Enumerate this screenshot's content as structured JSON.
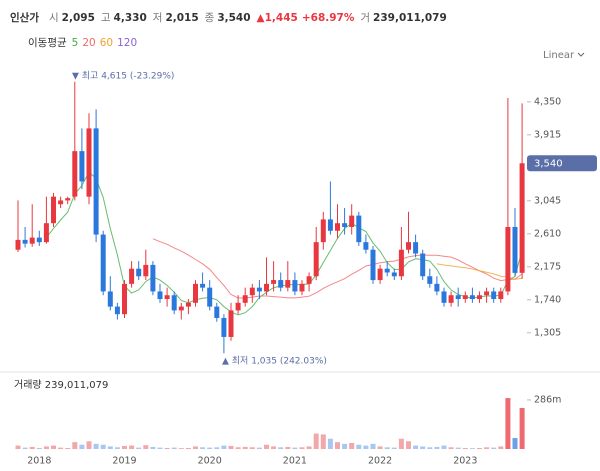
{
  "header": {
    "name": "인산가",
    "fields": [
      {
        "label": "시",
        "value": "2,095"
      },
      {
        "label": "고",
        "value": "4,330"
      },
      {
        "label": "저",
        "value": "2,015"
      },
      {
        "label": "종",
        "value": "3,540"
      }
    ],
    "change": "▲1,445",
    "change_pct": "+68.97%",
    "volume_label": "거",
    "volume": "239,011,079"
  },
  "ma_legend": {
    "label": "이동평균",
    "periods": [
      {
        "value": 5,
        "color": "#3fae49"
      },
      {
        "value": 20,
        "color": "#f06a6a"
      },
      {
        "value": 60,
        "color": "#f0a030"
      },
      {
        "value": 120,
        "color": "#8a63d2"
      }
    ]
  },
  "scale_menu": "Linear",
  "chart_data": {
    "type": "candlestick",
    "categories": [
      null,
      null,
      null,
      "2018",
      null,
      null,
      null,
      null,
      null,
      null,
      null,
      null,
      null,
      null,
      null,
      "2019",
      null,
      null,
      null,
      null,
      null,
      null,
      null,
      null,
      null,
      null,
      null,
      "2020",
      null,
      null,
      null,
      null,
      null,
      null,
      null,
      null,
      null,
      null,
      null,
      "2021",
      null,
      null,
      null,
      null,
      null,
      null,
      null,
      null,
      null,
      null,
      null,
      "2022",
      null,
      null,
      null,
      null,
      null,
      null,
      null,
      null,
      null,
      null,
      null,
      "2023",
      null,
      null,
      null,
      null,
      null,
      null,
      null,
      null
    ],
    "open": [
      2400,
      2530,
      2480,
      2560,
      2500,
      2750,
      3000,
      3050,
      3100,
      3700,
      3100,
      4000,
      2600,
      1850,
      1650,
      1550,
      1950,
      2150,
      2050,
      2200,
      1850,
      1750,
      1800,
      1600,
      1650,
      1700,
      1950,
      1900,
      1650,
      1500,
      1250,
      1600,
      1700,
      1800,
      1900,
      1850,
      1950,
      2000,
      1900,
      2000,
      1850,
      1950,
      2050,
      2500,
      2800,
      2650,
      2750,
      2700,
      2850,
      2500,
      2400,
      2000,
      2150,
      2100,
      2050,
      2400,
      2500,
      2350,
      2050,
      1950,
      1850,
      1700,
      1800,
      1750,
      1800,
      1750,
      1800,
      1850,
      1750,
      1850,
      2700,
      2095
    ],
    "high": [
      3050,
      2700,
      3000,
      2650,
      3100,
      3150,
      3100,
      3100,
      4615,
      4000,
      4200,
      4250,
      2650,
      2050,
      1700,
      2000,
      2250,
      2250,
      2400,
      2250,
      1950,
      1900,
      1850,
      1700,
      1750,
      2000,
      2100,
      2000,
      1700,
      1550,
      1700,
      1800,
      1900,
      1950,
      2000,
      2300,
      2250,
      2100,
      2250,
      2100,
      2000,
      2100,
      2700,
      2900,
      3300,
      3000,
      2950,
      3000,
      2900,
      2600,
      2450,
      2200,
      2250,
      2150,
      2700,
      2900,
      2600,
      2400,
      2150,
      2050,
      1900,
      1850,
      1900,
      1850,
      1900,
      1850,
      1900,
      1900,
      1900,
      4400,
      2950,
      4330
    ],
    "low": [
      2370,
      2430,
      2440,
      2450,
      2480,
      2700,
      2950,
      3000,
      3050,
      3200,
      3000,
      2500,
      1800,
      1600,
      1480,
      1500,
      1900,
      2000,
      2000,
      1800,
      1700,
      1650,
      1550,
      1480,
      1550,
      1650,
      1850,
      1600,
      1450,
      1035,
      1200,
      1550,
      1650,
      1700,
      1750,
      1800,
      1850,
      1850,
      1850,
      1800,
      1800,
      1850,
      2000,
      2400,
      2600,
      2550,
      2600,
      2600,
      2450,
      2350,
      1950,
      1950,
      2050,
      2000,
      2000,
      2350,
      2300,
      2000,
      1900,
      1800,
      1650,
      1650,
      1650,
      1700,
      1700,
      1700,
      1700,
      1700,
      1700,
      1800,
      2050,
      2015
    ],
    "close": [
      2530,
      2480,
      2560,
      2500,
      2750,
      3100,
      3050,
      3080,
      3700,
      3300,
      4000,
      2600,
      1850,
      1650,
      1550,
      1950,
      2150,
      2050,
      2200,
      1850,
      1750,
      1800,
      1600,
      1650,
      1700,
      1950,
      1900,
      1650,
      1500,
      1250,
      1600,
      1700,
      1800,
      1900,
      1850,
      1950,
      2000,
      1900,
      2000,
      1850,
      1950,
      2050,
      2500,
      2800,
      2650,
      2750,
      2700,
      2850,
      2500,
      2400,
      2000,
      2150,
      2100,
      2050,
      2400,
      2500,
      2350,
      2050,
      1950,
      1850,
      1700,
      1800,
      1750,
      1800,
      1750,
      1800,
      1850,
      1750,
      1850,
      2700,
      2095,
      3540
    ],
    "volume": [
      20000000,
      8000000,
      12000000,
      6000000,
      15000000,
      20000000,
      8000000,
      6000000,
      40000000,
      25000000,
      45000000,
      30000000,
      25000000,
      15000000,
      10000000,
      18000000,
      20000000,
      8000000,
      22000000,
      12000000,
      8000000,
      6000000,
      8000000,
      5000000,
      6000000,
      15000000,
      10000000,
      8000000,
      10000000,
      20000000,
      18000000,
      10000000,
      12000000,
      10000000,
      8000000,
      25000000,
      15000000,
      10000000,
      12000000,
      8000000,
      10000000,
      15000000,
      90000000,
      85000000,
      60000000,
      40000000,
      30000000,
      35000000,
      25000000,
      20000000,
      30000000,
      15000000,
      10000000,
      8000000,
      60000000,
      45000000,
      20000000,
      15000000,
      10000000,
      12000000,
      20000000,
      10000000,
      8000000,
      6000000,
      5000000,
      6000000,
      10000000,
      8000000,
      15000000,
      297000000,
      64000000,
      239011079
    ],
    "up_color": "#e8373f",
    "down_color": "#2b78dc",
    "up_volume_color": "#f2a7ab",
    "down_volume_color": "#a9c8ef",
    "ylim": [
      880,
      4770
    ],
    "yticks": [
      {
        "value": 1305,
        "label": "1,305"
      },
      {
        "value": 1740,
        "label": "1,740"
      },
      {
        "value": 2175,
        "label": "2,175"
      },
      {
        "value": 2610,
        "label": "2,610"
      },
      {
        "value": 3045,
        "label": "3,045"
      },
      {
        "value": 3915,
        "label": "3,915"
      },
      {
        "value": 4350,
        "label": "4,350"
      }
    ],
    "last_label": "3,540",
    "annotations": {
      "high": "▼ 최고 4,615 (-23.29%)",
      "low": "▲ 최저 1,035 (242.03%)"
    },
    "volume_title": "거래량 239,011,079",
    "volume_ylim": [
      0,
      414000000
    ],
    "volume_yticks": [
      {
        "value": 286000000,
        "label": "286m"
      }
    ]
  }
}
